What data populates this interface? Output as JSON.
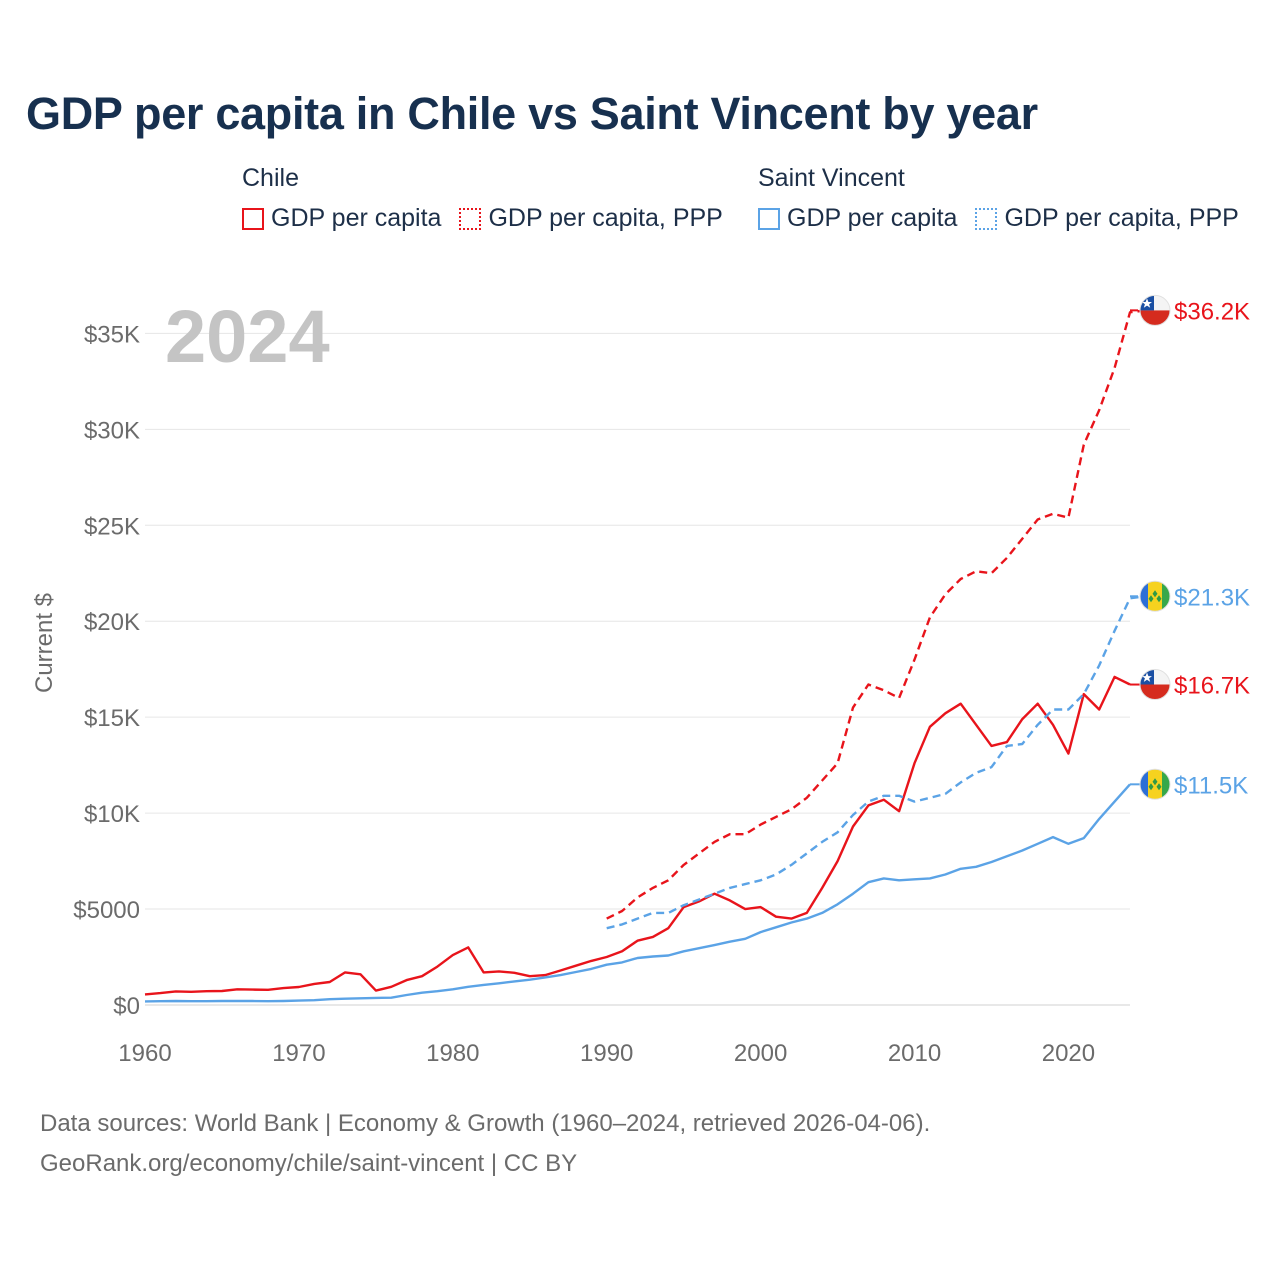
{
  "title": "GDP per capita in Chile vs Saint Vincent by year",
  "legend": {
    "groups": [
      {
        "name": "Chile",
        "items": [
          {
            "label": "GDP per capita",
            "style": "solid",
            "color": "#e8141b"
          },
          {
            "label": "GDP per capita, PPP",
            "style": "dotted",
            "color": "#e8141b"
          }
        ]
      },
      {
        "name": "Saint Vincent",
        "items": [
          {
            "label": "GDP per capita",
            "style": "solid",
            "color": "#5ba3e6"
          },
          {
            "label": "GDP per capita, PPP",
            "style": "dotted",
            "color": "#5ba3e6"
          }
        ]
      }
    ]
  },
  "year_watermark": "2024",
  "source": {
    "line1": "Data sources: World Bank | Economy & Growth (1960–2024, retrieved 2026-04-06).",
    "line2": "GeoRank.org/economy/chile/saint-vincent | CC BY"
  },
  "colors": {
    "chile": "#e8141b",
    "saint_vincent": "#5ba3e6",
    "grid": "#e6e6e6",
    "axis_text": "#6b6b6b"
  },
  "chart_data": {
    "type": "line",
    "title": "GDP per capita in Chile vs Saint Vincent by year",
    "xlabel": "",
    "ylabel": "Current $",
    "xlim": [
      1960,
      2024
    ],
    "ylim": [
      0,
      37000
    ],
    "x_ticks": [
      1960,
      1970,
      1980,
      1990,
      2000,
      2010,
      2020
    ],
    "y_ticks": [
      {
        "value": 0,
        "label": "$0"
      },
      {
        "value": 5000,
        "label": "$5000"
      },
      {
        "value": 10000,
        "label": "$10K"
      },
      {
        "value": 15000,
        "label": "$15K"
      },
      {
        "value": 20000,
        "label": "$20K"
      },
      {
        "value": 25000,
        "label": "$25K"
      },
      {
        "value": 30000,
        "label": "$30K"
      },
      {
        "value": 35000,
        "label": "$35K"
      }
    ],
    "series": [
      {
        "key": "chile_ppp",
        "name": "Chile GDP per capita, PPP",
        "color": "#e8141b",
        "dash": "dashed",
        "country": "chile",
        "end_label": "$36.2K",
        "start_year": 1990,
        "values": [
          4500,
          4900,
          5600,
          6100,
          6500,
          7300,
          7900,
          8500,
          8900,
          8900,
          9400,
          9800,
          10200,
          10800,
          11700,
          12600,
          15500,
          16700,
          16400,
          16000,
          18000,
          20200,
          21400,
          22200,
          22600,
          22500,
          23300,
          24300,
          25300,
          25600,
          25400,
          29200,
          31000,
          33200,
          36100,
          36200
        ]
      },
      {
        "key": "chile_gdp",
        "name": "Chile GDP per capita",
        "color": "#e8141b",
        "dash": "solid",
        "country": "chile",
        "end_label": "$16.7K",
        "start_year": 1960,
        "values": [
          550,
          620,
          710,
          690,
          720,
          730,
          820,
          800,
          790,
          880,
          940,
          1100,
          1200,
          1700,
          1600,
          750,
          950,
          1300,
          1500,
          2000,
          2600,
          3000,
          1700,
          1750,
          1680,
          1500,
          1560,
          1800,
          2050,
          2300,
          2500,
          2800,
          3350,
          3550,
          4000,
          5100,
          5400,
          5800,
          5450,
          5000,
          5100,
          4600,
          4500,
          4800,
          6100,
          7500,
          9300,
          10400,
          10700,
          10100,
          12600,
          14500,
          15200,
          15700,
          14600,
          13500,
          13700,
          14900,
          15700,
          14600,
          13100,
          16200,
          15400,
          17100,
          16700
        ]
      },
      {
        "key": "svg_ppp",
        "name": "Saint Vincent GDP per capita, PPP",
        "color": "#5ba3e6",
        "dash": "dashed",
        "country": "saint_vincent",
        "end_label": "$21.3K",
        "start_year": 1990,
        "values": [
          4000,
          4200,
          4500,
          4800,
          4800,
          5200,
          5500,
          5800,
          6100,
          6300,
          6500,
          6800,
          7300,
          7900,
          8500,
          9000,
          9900,
          10600,
          10900,
          10900,
          10600,
          10800,
          11000,
          11600,
          12100,
          12400,
          13500,
          13600,
          14600,
          15400,
          15400,
          16200,
          17700,
          19500,
          21200,
          21300
        ]
      },
      {
        "key": "svg_gdp",
        "name": "Saint Vincent GDP per capita",
        "color": "#5ba3e6",
        "dash": "solid",
        "country": "saint_vincent",
        "end_label": "$11.5K",
        "start_year": 1960,
        "values": [
          190,
          200,
          210,
          200,
          200,
          210,
          210,
          210,
          200,
          210,
          230,
          250,
          300,
          330,
          350,
          370,
          380,
          520,
          640,
          720,
          820,
          950,
          1050,
          1130,
          1230,
          1320,
          1440,
          1560,
          1720,
          1880,
          2100,
          2220,
          2450,
          2530,
          2580,
          2800,
          2960,
          3120,
          3300,
          3450,
          3800,
          4050,
          4300,
          4500,
          4800,
          5250,
          5800,
          6400,
          6600,
          6500,
          6550,
          6600,
          6800,
          7100,
          7200,
          7450,
          7750,
          8050,
          8400,
          8750,
          8400,
          8700,
          9700,
          10600,
          11500
        ]
      }
    ]
  }
}
